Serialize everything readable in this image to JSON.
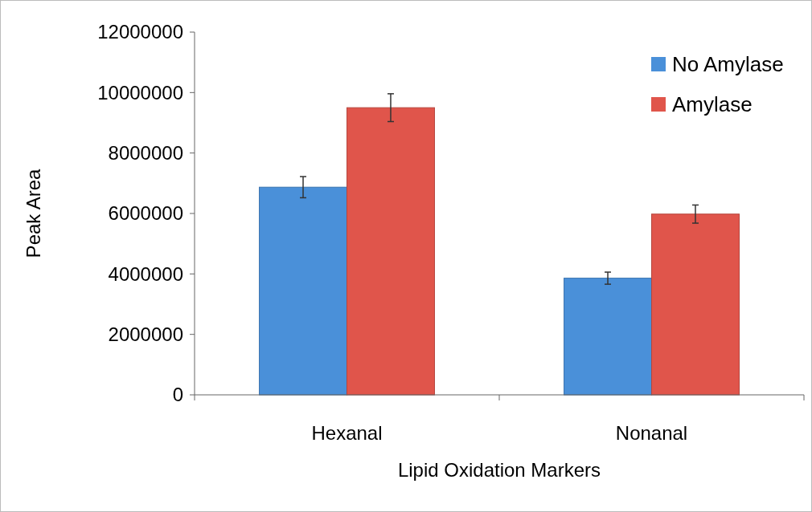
{
  "chart_data": {
    "type": "bar",
    "xlabel": "Lipid Oxidation Markers",
    "ylabel": "Peak Area",
    "categories": [
      "Hexanal",
      "Nonanal"
    ],
    "series": [
      {
        "name": "No Amylase",
        "color": "#4a90d9",
        "values": [
          6870000,
          3860000
        ],
        "errors": [
          350000,
          200000
        ]
      },
      {
        "name": "Amylase",
        "color": "#e0554b",
        "values": [
          9500000,
          5980000
        ],
        "errors": [
          460000,
          300000
        ]
      }
    ],
    "ylim": [
      0,
      12000000
    ],
    "yticks": [
      0,
      2000000,
      4000000,
      6000000,
      8000000,
      10000000,
      12000000
    ],
    "legend": "top right",
    "grid": false
  }
}
